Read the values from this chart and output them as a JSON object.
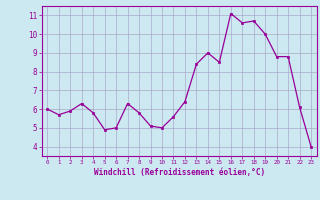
{
  "x": [
    0,
    1,
    2,
    3,
    4,
    5,
    6,
    7,
    8,
    9,
    10,
    11,
    12,
    13,
    14,
    15,
    16,
    17,
    18,
    19,
    20,
    21,
    22,
    23
  ],
  "y": [
    6.0,
    5.7,
    5.9,
    6.3,
    5.8,
    4.9,
    5.0,
    6.3,
    5.8,
    5.1,
    5.0,
    5.6,
    6.4,
    8.4,
    9.0,
    8.5,
    11.1,
    10.6,
    10.7,
    10.0,
    8.8,
    8.8,
    6.1,
    4.0
  ],
  "xlim": [
    -0.5,
    23.5
  ],
  "ylim": [
    3.5,
    11.5
  ],
  "yticks": [
    4,
    5,
    6,
    7,
    8,
    9,
    10,
    11
  ],
  "xtick_labels": [
    "0",
    "1",
    "2",
    "3",
    "4",
    "5",
    "6",
    "7",
    "8",
    "9",
    "10",
    "11",
    "12",
    "13",
    "14",
    "15",
    "16",
    "17",
    "18",
    "19",
    "20",
    "21",
    "22",
    "23"
  ],
  "xlabel": "Windchill (Refroidissement éolien,°C)",
  "line_color": "#990099",
  "marker_color": "#990099",
  "bg_color": "#cce8f0",
  "grid_color": "#aaaacc",
  "tick_color": "#990099",
  "label_color": "#990099",
  "figsize": [
    3.2,
    2.0
  ],
  "dpi": 100
}
